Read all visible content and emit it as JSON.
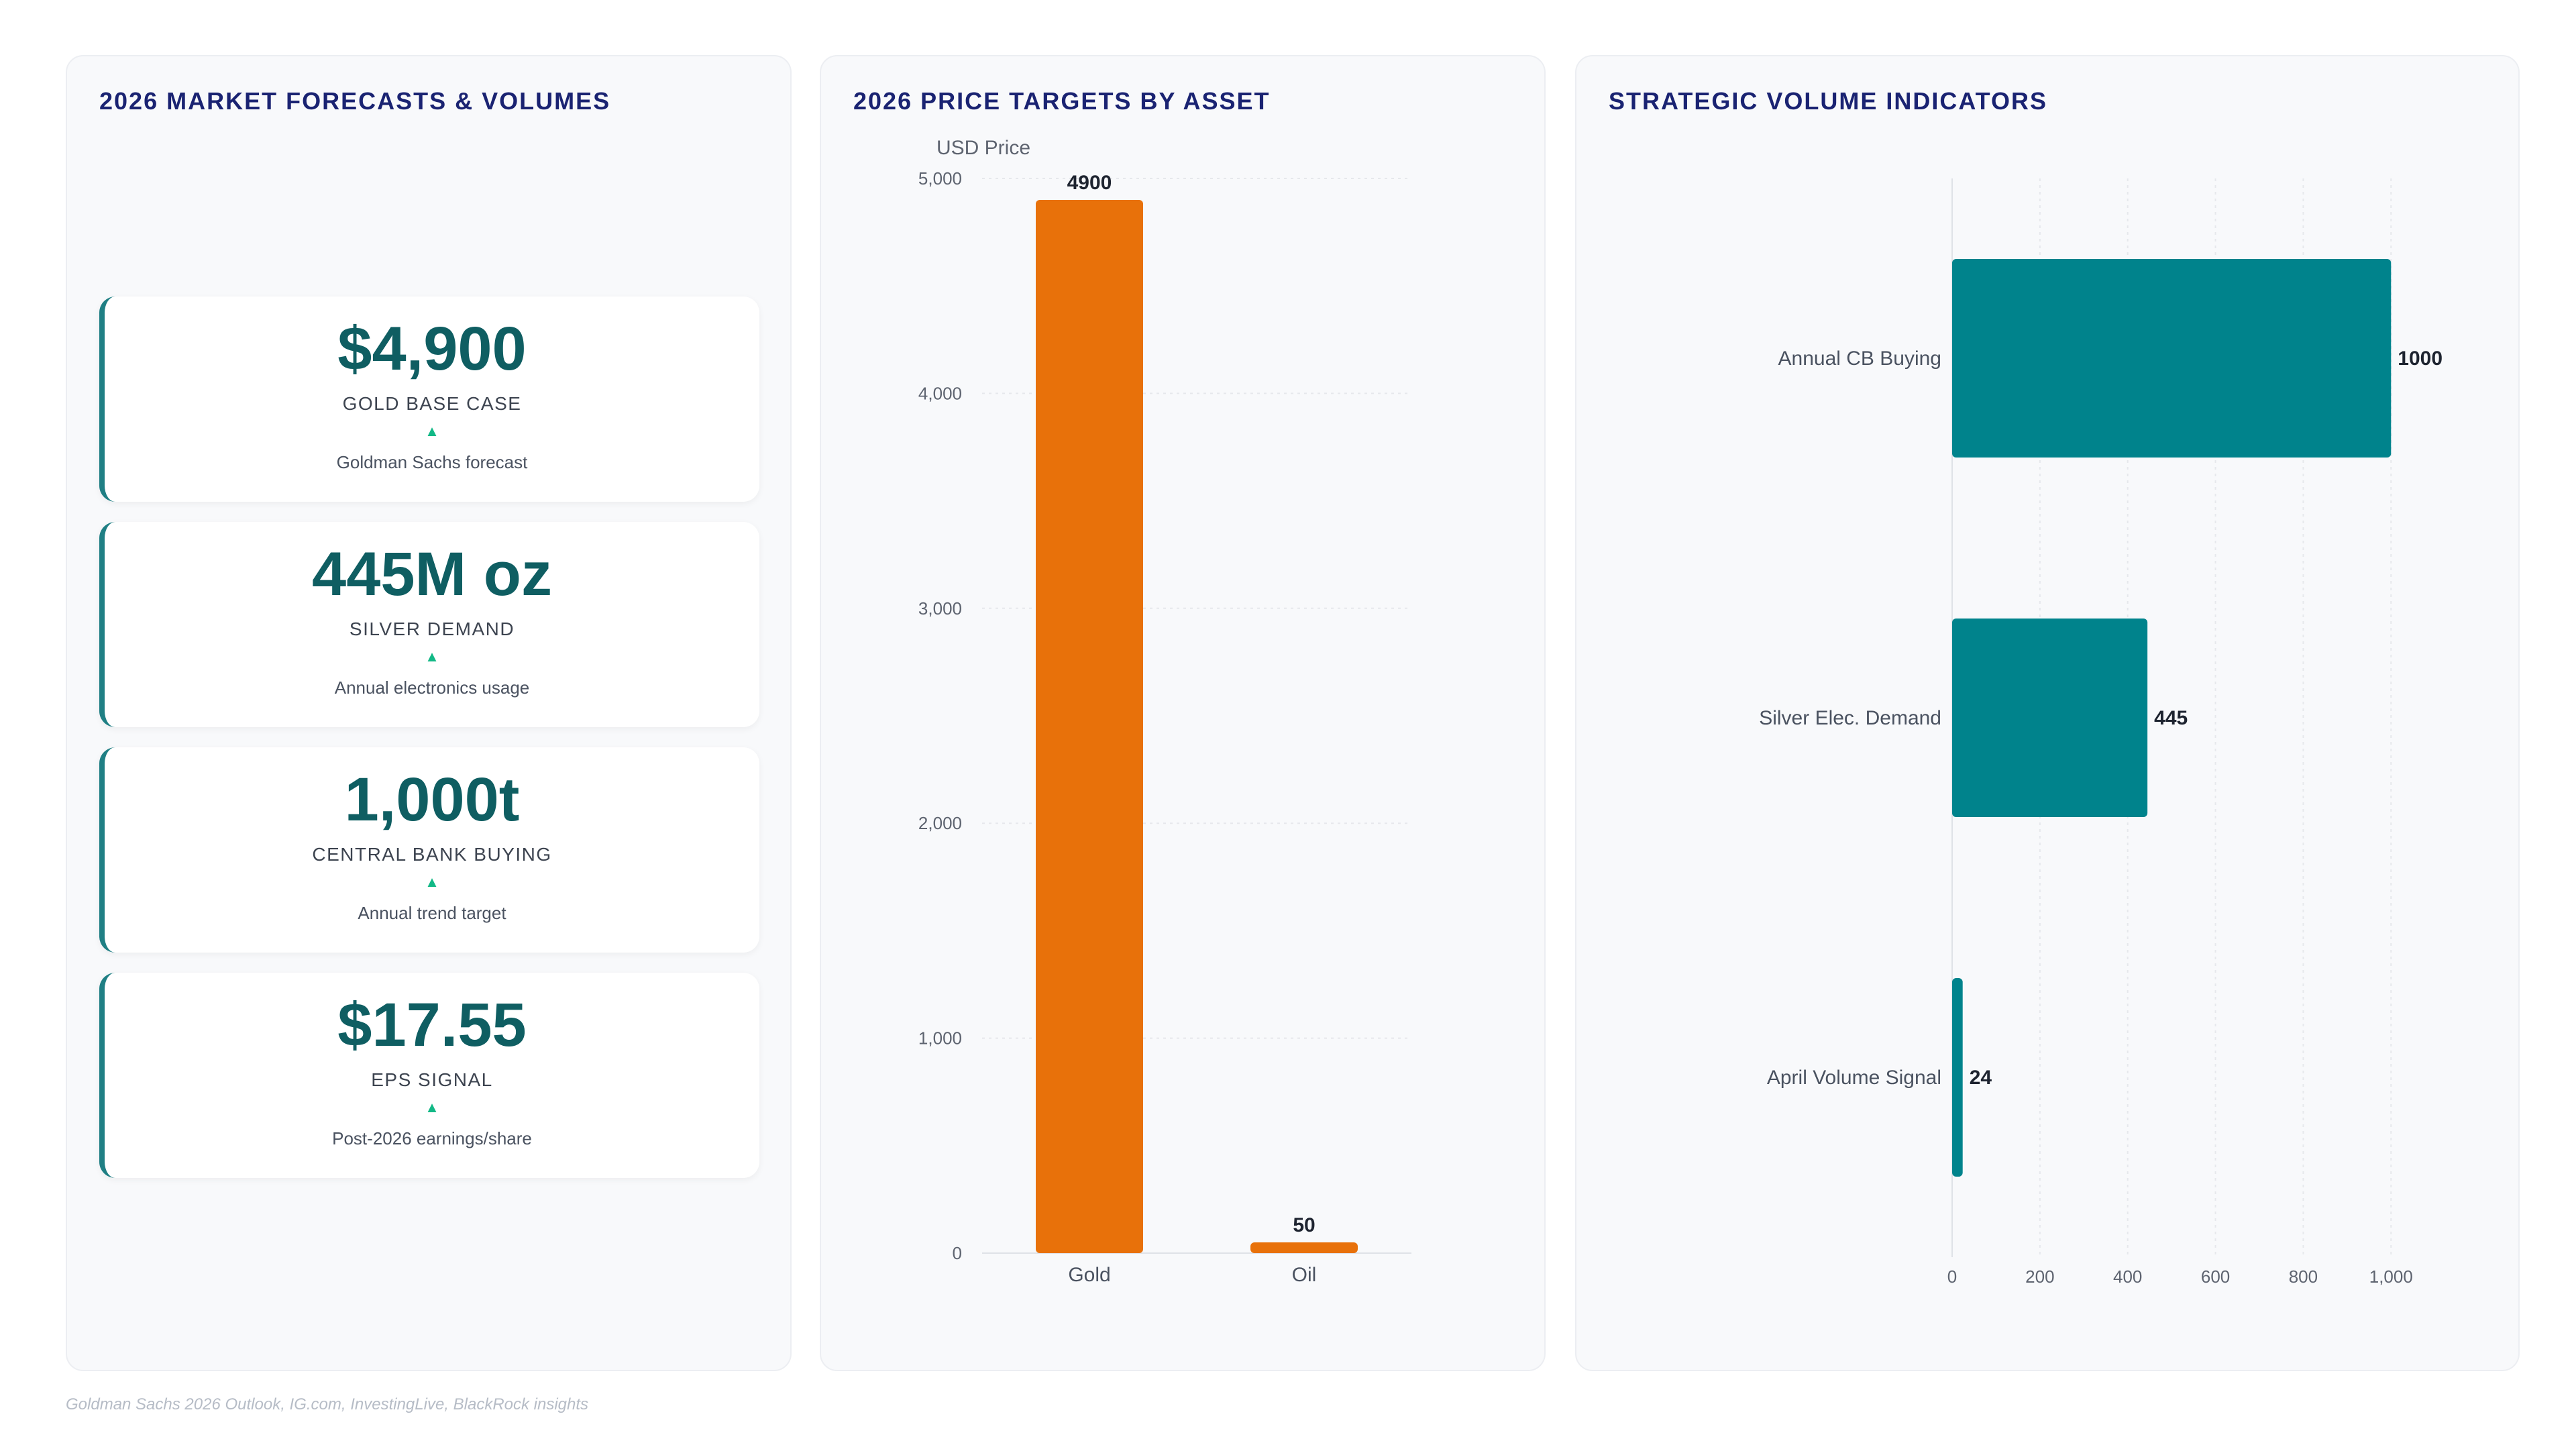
{
  "kpi_panel": {
    "title": "2026 MARKET FORECASTS & VOLUMES",
    "cards": [
      {
        "value": "$4,900",
        "label": "GOLD BASE CASE",
        "arrow": "▲",
        "sub": "Goldman Sachs forecast"
      },
      {
        "value": "445M oz",
        "label": "SILVER DEMAND",
        "arrow": "▲",
        "sub": "Annual electronics usage"
      },
      {
        "value": "1,000t",
        "label": "CENTRAL BANK BUYING",
        "arrow": "▲",
        "sub": "Annual trend target"
      },
      {
        "value": "$17.55",
        "label": "EPS SIGNAL",
        "arrow": "▲",
        "sub": "Post-2026 earnings/share"
      }
    ]
  },
  "price_panel": {
    "title": "2026 PRICE TARGETS BY ASSET"
  },
  "volume_panel": {
    "title": "STRATEGIC VOLUME INDICATORS"
  },
  "footnote": "Goldman Sachs 2026 Outlook, IG.com, InvestingLive, BlackRock insights",
  "colors": {
    "accent": "#0f5e62",
    "price_bar": "#e8710a",
    "volume_bar": "#00838c",
    "title": "#1a2372",
    "trend_up": "#12b886"
  },
  "chart_data": [
    {
      "type": "bar",
      "title": "2026 PRICE TARGETS BY ASSET",
      "categories": [
        "Gold",
        "Oil"
      ],
      "values": [
        4900,
        50
      ],
      "value_labels": [
        "4900",
        "50"
      ],
      "ylabel": "USD Price",
      "ylim": [
        0,
        5000
      ],
      "yticks": [
        0,
        1000,
        2000,
        3000,
        4000,
        5000
      ],
      "ytick_labels": [
        "0",
        "1,000",
        "2,000",
        "3,000",
        "4,000",
        "5,000"
      ],
      "grid": true
    },
    {
      "type": "bar",
      "orientation": "horizontal",
      "title": "STRATEGIC VOLUME INDICATORS",
      "categories": [
        "Annual CB Buying",
        "Silver Elec. Demand",
        "April Volume Signal"
      ],
      "values": [
        1000,
        445,
        24
      ],
      "value_labels": [
        "1000",
        "445",
        "24"
      ],
      "xlim": [
        0,
        1050
      ],
      "xticks": [
        0,
        200,
        400,
        600,
        800,
        1000
      ],
      "xtick_labels": [
        "0",
        "200",
        "400",
        "600",
        "800",
        "1,000"
      ],
      "grid": true
    }
  ]
}
